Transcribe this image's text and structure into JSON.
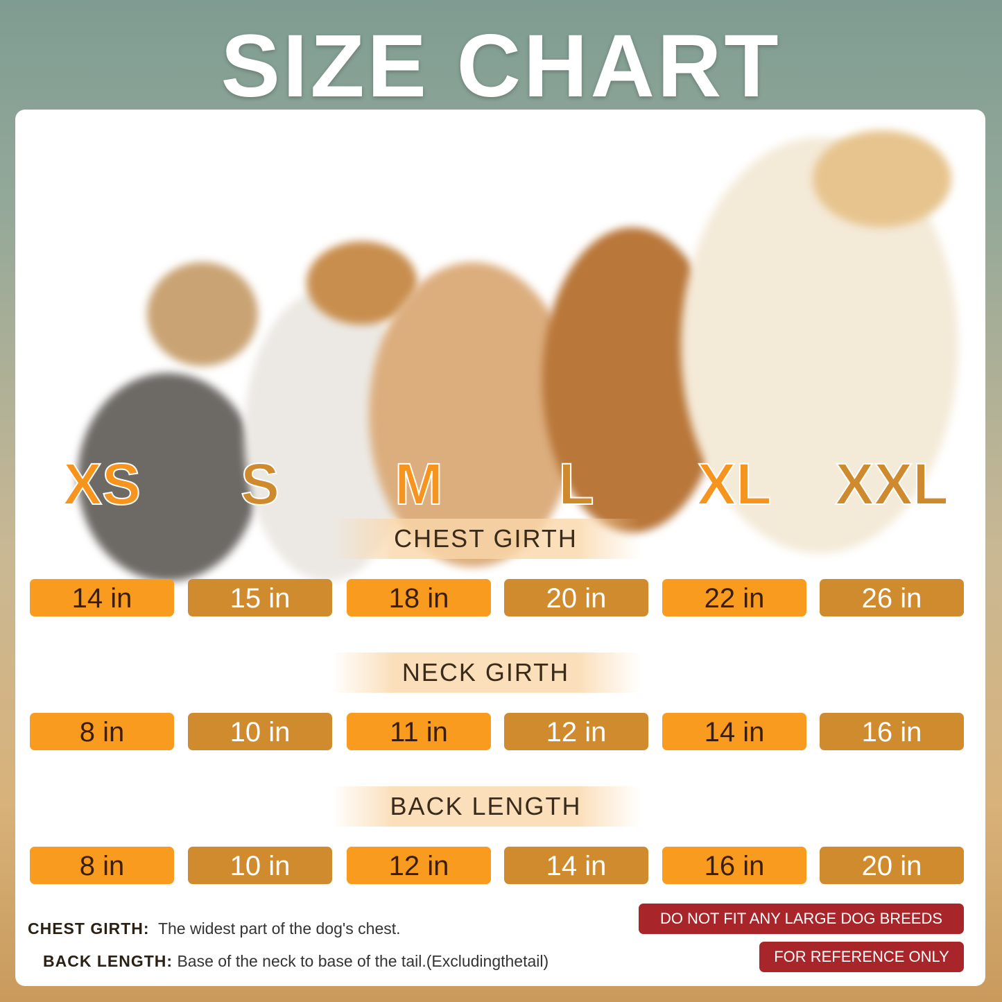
{
  "title": "SIZE CHART",
  "sizes": [
    {
      "label": "XS",
      "color": "#f7941d"
    },
    {
      "label": "S",
      "color": "#d08a2e"
    },
    {
      "label": "M",
      "color": "#f7941d"
    },
    {
      "label": "L",
      "color": "#d08a2e"
    },
    {
      "label": "XL",
      "color": "#f7941d"
    },
    {
      "label": "XXL",
      "color": "#d08a2e"
    }
  ],
  "sections": [
    {
      "title": "CHEST GIRTH",
      "values": [
        "14 in",
        "15 in",
        "18 in",
        "20 in",
        "22 in",
        "26 in"
      ]
    },
    {
      "title": "NECK GIRTH",
      "values": [
        "8 in",
        "10 in",
        "11 in",
        "12 in",
        "14 in",
        "16 in"
      ]
    },
    {
      "title": "BACK LENGTH",
      "values": [
        "8 in",
        "10 in",
        "12 in",
        "14 in",
        "16 in",
        "20 in"
      ]
    }
  ],
  "notes": [
    {
      "term": "CHEST GIRTH:",
      "desc": "The widest part of the dog's chest."
    },
    {
      "term": "BACK LENGTH:",
      "desc": "Base of the neck to base of the tail.(Excludingthetail)"
    }
  ],
  "badges": [
    "DO NOT FIT ANY LARGE DOG BREEDS",
    "FOR REFERENCE ONLY"
  ],
  "colors": {
    "accent_orange": "#f89b1e",
    "accent_gold": "#d18b2f",
    "badge_red": "#a8252a"
  }
}
